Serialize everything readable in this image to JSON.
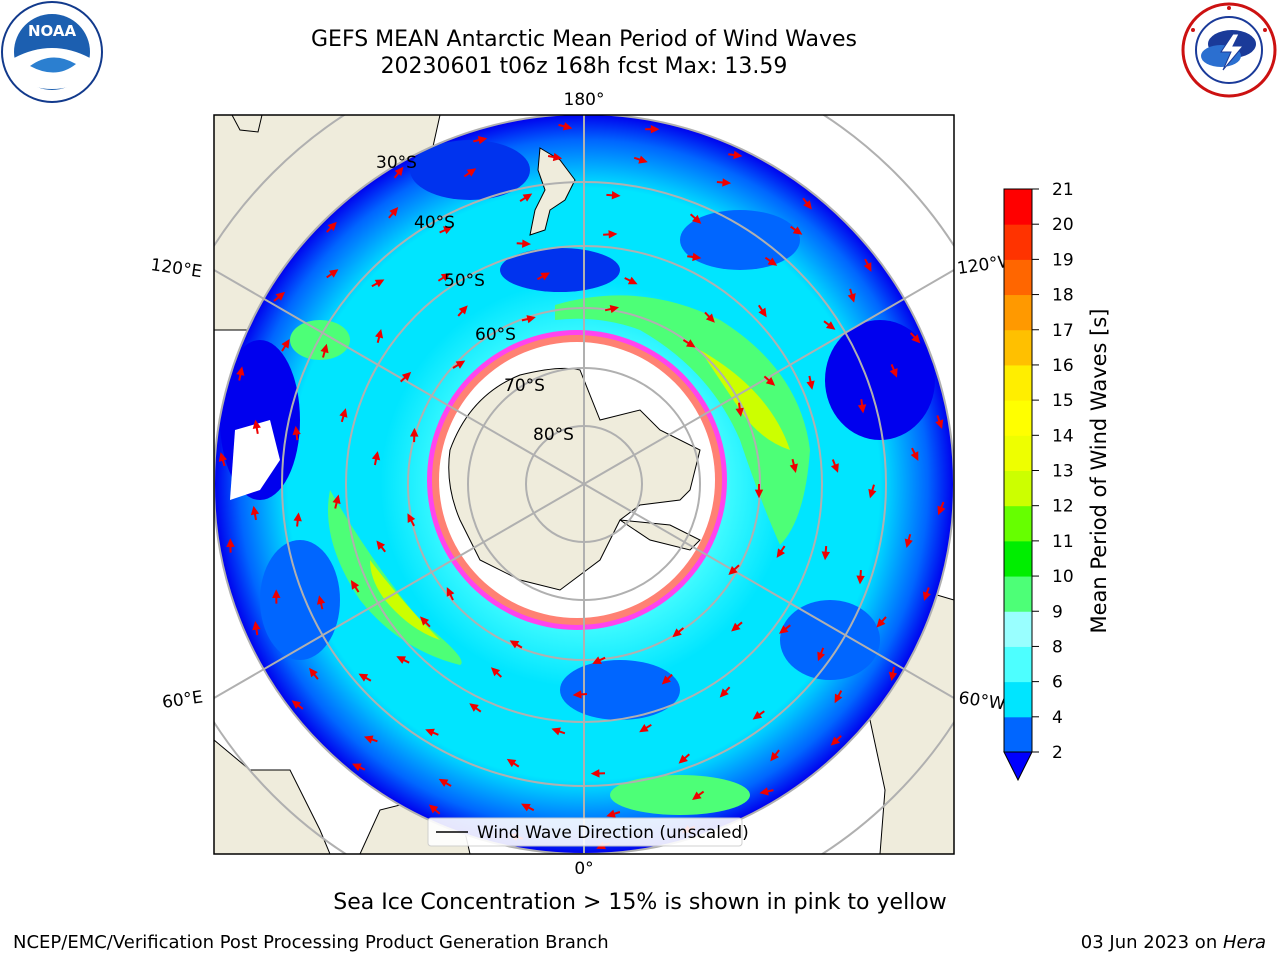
{
  "title": {
    "line1": "GEFS MEAN Antarctic Mean Period of Wind Waves",
    "line2": "20230601 t06z 168h fcst   Max: 13.59"
  },
  "logos": {
    "left_icon": "noaa-logo",
    "left_text": "NOAA",
    "right_icon": "national-weather-service-logo"
  },
  "map": {
    "projection": "south-polar-stereographic",
    "longitude_labels": {
      "top": "180°",
      "bottom": "0°",
      "upper_left": "120°E",
      "lower_left": "60°E",
      "upper_right": "120°W",
      "lower_right": "60°W"
    },
    "latitude_labels": [
      "30°S",
      "40°S",
      "50°S",
      "60°S",
      "70°S",
      "80°S"
    ],
    "legend": "Wind Wave Direction (unscaled)"
  },
  "colorbar": {
    "label": "Mean Period of Wind Waves [s]",
    "ticks": [
      "2",
      "4",
      "6",
      "8",
      "9",
      "10",
      "11",
      "12",
      "13",
      "14",
      "15",
      "16",
      "17",
      "18",
      "19",
      "20",
      "21"
    ],
    "colors": [
      "#0066ff",
      "#00e5ff",
      "#4dffff",
      "#99ffff",
      "#4dff77",
      "#00ee00",
      "#66ff00",
      "#ccff00",
      "#eeff00",
      "#ffff00",
      "#ffee00",
      "#ffc000",
      "#ff9900",
      "#ff6600",
      "#ff3300",
      "#ff0000"
    ],
    "extend_color": "#0000ff"
  },
  "palette": {
    "land": "#efecdc",
    "ocean_high": "#0000ee",
    "ocean_low": "#0066ff",
    "ocean_mid": "#00e5ff",
    "ocean_light": "#4dffff",
    "waves_green": "#4dff77",
    "waves_yellow": "#ccff00",
    "ice_pink": "#ff44ee",
    "ice_orange": "#ffaa22",
    "arrow": "#ee0000",
    "grid": "#b0b0b0"
  },
  "caption": "Sea Ice Concentration > 15% is shown in pink to yellow",
  "footer": {
    "left": "NCEP/EMC/Verification Post Processing Product Generation Branch",
    "right_date": "03 Jun 2023 on ",
    "right_machine": "Hera"
  }
}
